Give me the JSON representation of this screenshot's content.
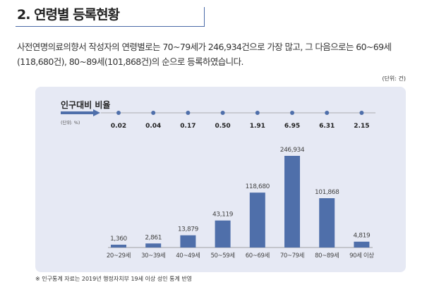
{
  "header": {
    "title": "2. 연령별 등록현황"
  },
  "description": "사전연명의료의향서 작성자의 연령별로는 70~79세가 246,934건으로 가장 많고, 그 다음으로는 60~69세(118,680건), 80~89세(101,868건)의 순으로 등록하였습니다.",
  "unit": "(단위: 건)",
  "note": "※ 인구통계 자료는 2019년 행정자치부 19세 이상 성인 통계 반영",
  "chart_data": {
    "type": "bar",
    "categories": [
      "20~29세",
      "30~39세",
      "40~49세",
      "50~59세",
      "60~69세",
      "70~79세",
      "80~89세",
      "90세 이상"
    ],
    "values": [
      1360,
      2861,
      13879,
      43119,
      118680,
      246934,
      101868,
      4819
    ],
    "value_labels": [
      "1,360",
      "2,861",
      "13,879",
      "43,119",
      "118,680",
      "246,934",
      "101,868",
      "4,819"
    ],
    "bar_color": "#4f6faa",
    "ratio": {
      "title": "인구대비 비율",
      "unit": "(단위: %)",
      "values": [
        "0.02",
        "0.04",
        "0.17",
        "0.50",
        "1.91",
        "6.95",
        "6.31",
        "2.15"
      ]
    }
  }
}
